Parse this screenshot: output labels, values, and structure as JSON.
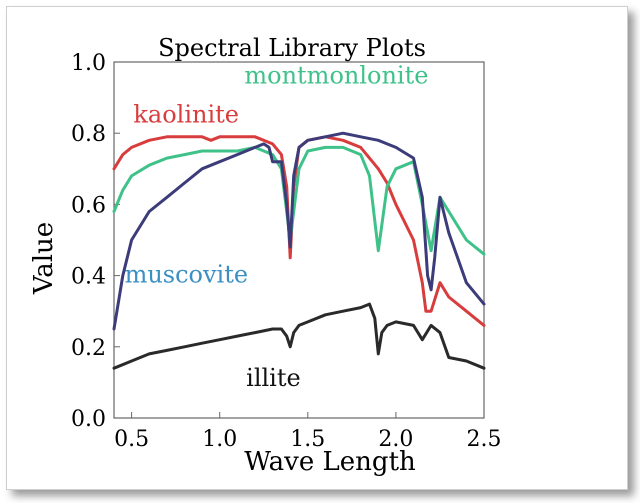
{
  "chart_data": {
    "type": "line",
    "title": "Spectral Library Plots",
    "xlabel": "Wave Length",
    "ylabel": "Value",
    "xlim": [
      0.4,
      2.5
    ],
    "ylim": [
      0.0,
      1.0
    ],
    "xticks": [
      "0.5",
      "1.0",
      "1.5",
      "2.0",
      "2.5"
    ],
    "yticks": [
      "0.0",
      "0.2",
      "0.4",
      "0.6",
      "0.8",
      "1.0"
    ],
    "grid": false,
    "series": [
      {
        "name": "kaolinite",
        "color": "#d83c3c",
        "x": [
          0.4,
          0.45,
          0.5,
          0.6,
          0.7,
          0.8,
          0.9,
          0.95,
          1.0,
          1.1,
          1.2,
          1.3,
          1.35,
          1.38,
          1.4,
          1.42,
          1.45,
          1.5,
          1.6,
          1.7,
          1.8,
          1.9,
          1.95,
          2.0,
          2.1,
          2.15,
          2.17,
          2.2,
          2.25,
          2.3,
          2.4,
          2.5
        ],
        "y": [
          0.7,
          0.74,
          0.76,
          0.78,
          0.79,
          0.79,
          0.79,
          0.78,
          0.79,
          0.79,
          0.79,
          0.77,
          0.74,
          0.65,
          0.45,
          0.65,
          0.76,
          0.78,
          0.79,
          0.78,
          0.76,
          0.7,
          0.66,
          0.6,
          0.5,
          0.38,
          0.3,
          0.3,
          0.38,
          0.34,
          0.3,
          0.26
        ]
      },
      {
        "name": "montmonlonite",
        "color": "#3fc28a",
        "x": [
          0.4,
          0.45,
          0.5,
          0.6,
          0.7,
          0.8,
          0.9,
          1.0,
          1.1,
          1.2,
          1.3,
          1.35,
          1.4,
          1.45,
          1.5,
          1.6,
          1.7,
          1.8,
          1.85,
          1.9,
          1.95,
          2.0,
          2.1,
          2.15,
          2.2,
          2.25,
          2.3,
          2.4,
          2.5
        ],
        "y": [
          0.58,
          0.64,
          0.68,
          0.71,
          0.73,
          0.74,
          0.75,
          0.75,
          0.75,
          0.76,
          0.74,
          0.7,
          0.5,
          0.7,
          0.75,
          0.76,
          0.76,
          0.74,
          0.68,
          0.47,
          0.65,
          0.7,
          0.72,
          0.6,
          0.47,
          0.62,
          0.58,
          0.5,
          0.46
        ]
      },
      {
        "name": "muscovite",
        "color": "#3c3c7a",
        "x": [
          0.4,
          0.45,
          0.5,
          0.6,
          0.7,
          0.8,
          0.9,
          1.0,
          1.1,
          1.2,
          1.25,
          1.28,
          1.3,
          1.35,
          1.38,
          1.4,
          1.42,
          1.45,
          1.5,
          1.6,
          1.7,
          1.8,
          1.9,
          1.95,
          2.0,
          2.1,
          2.15,
          2.18,
          2.2,
          2.22,
          2.25,
          2.3,
          2.4,
          2.5
        ],
        "y": [
          0.25,
          0.4,
          0.5,
          0.58,
          0.62,
          0.66,
          0.7,
          0.72,
          0.74,
          0.76,
          0.77,
          0.76,
          0.72,
          0.72,
          0.6,
          0.48,
          0.68,
          0.76,
          0.78,
          0.79,
          0.8,
          0.79,
          0.78,
          0.77,
          0.76,
          0.73,
          0.62,
          0.4,
          0.36,
          0.45,
          0.62,
          0.52,
          0.38,
          0.32
        ]
      },
      {
        "name": "illite",
        "color": "#2a2a2a",
        "x": [
          0.4,
          0.5,
          0.6,
          0.7,
          0.8,
          0.9,
          1.0,
          1.1,
          1.2,
          1.3,
          1.35,
          1.38,
          1.4,
          1.42,
          1.45,
          1.5,
          1.6,
          1.7,
          1.8,
          1.85,
          1.88,
          1.9,
          1.92,
          1.95,
          2.0,
          2.1,
          2.15,
          2.2,
          2.25,
          2.3,
          2.4,
          2.5
        ],
        "y": [
          0.14,
          0.16,
          0.18,
          0.19,
          0.2,
          0.21,
          0.22,
          0.23,
          0.24,
          0.25,
          0.25,
          0.23,
          0.2,
          0.24,
          0.26,
          0.27,
          0.29,
          0.3,
          0.31,
          0.32,
          0.28,
          0.18,
          0.24,
          0.26,
          0.27,
          0.26,
          0.22,
          0.26,
          0.24,
          0.17,
          0.16,
          0.14
        ]
      }
    ],
    "annotations": [
      {
        "text": "kaolinite",
        "x": 0.51,
        "y": 0.83,
        "color": "#d83c3c"
      },
      {
        "text": "montmonlonite",
        "x": 1.14,
        "y": 0.94,
        "color": "#3fc28a"
      },
      {
        "text": "muscovite",
        "x": 0.46,
        "y": 0.38,
        "color": "#3a8fc4"
      },
      {
        "text": "illite",
        "x": 1.15,
        "y": 0.09,
        "color": "#111111"
      }
    ]
  }
}
